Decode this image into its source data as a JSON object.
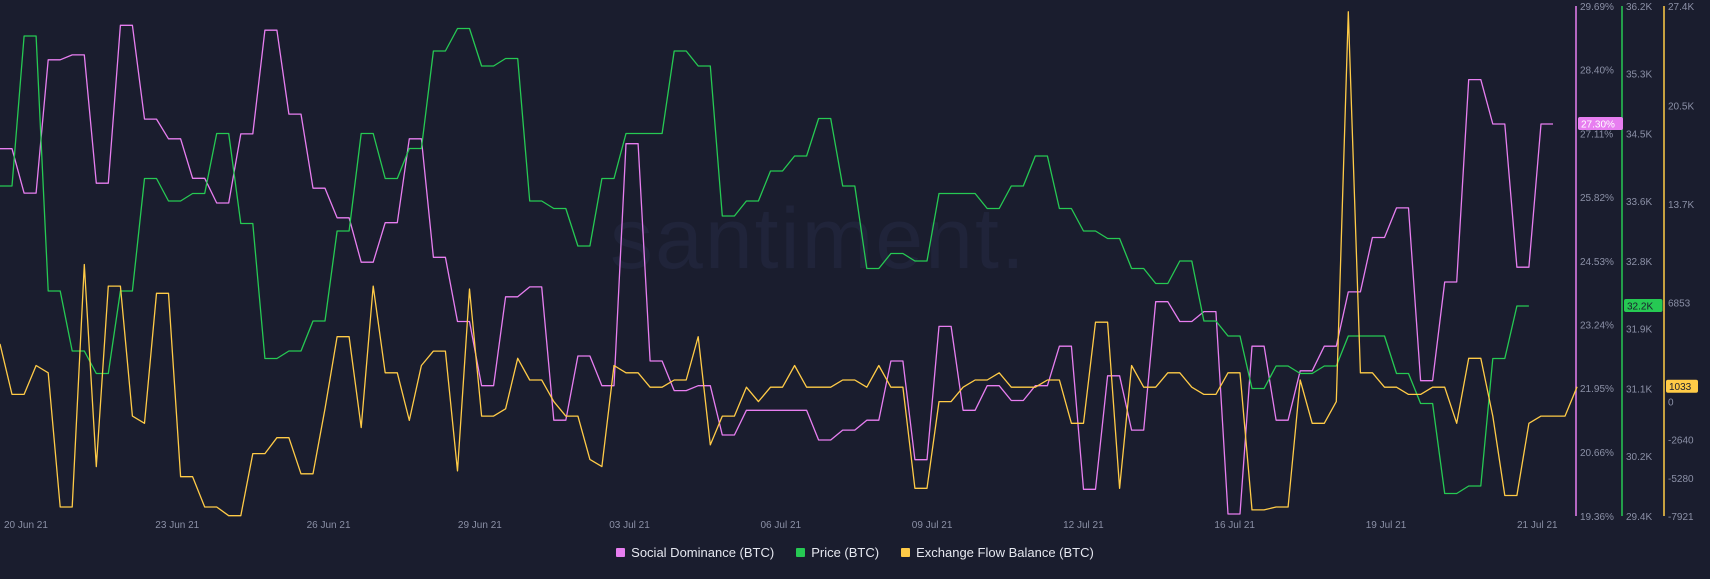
{
  "watermark": "santiment.",
  "legend": [
    {
      "label": "Social Dominance (BTC)",
      "color": "#e77ef0"
    },
    {
      "label": "Price (BTC)",
      "color": "#26c953"
    },
    {
      "label": "Exchange Flow Balance (BTC)",
      "color": "#ffcb47"
    }
  ],
  "chart_data": {
    "type": "line",
    "x_ticks": [
      "20 Jun 21",
      "23 Jun 21",
      "26 Jun 21",
      "29 Jun 21",
      "03 Jul 21",
      "06 Jul 21",
      "09 Jul 21",
      "12 Jul 21",
      "16 Jul 21",
      "19 Jul 21",
      "21 Jul 21"
    ],
    "axes": {
      "social_dominance": {
        "ticks": [
          "29.69%",
          "28.40%",
          "27.11%",
          "25.82%",
          "24.53%",
          "23.24%",
          "21.95%",
          "20.66%",
          "19.36%"
        ],
        "range": [
          19.36,
          29.69
        ],
        "current": "27.30%",
        "color": "#e77ef0"
      },
      "price": {
        "ticks": [
          "36.2K",
          "35.3K",
          "34.5K",
          "33.6K",
          "32.8K",
          "31.9K",
          "31.1K",
          "30.2K",
          "29.4K"
        ],
        "range": [
          29400,
          36200
        ],
        "current": "32.2K",
        "color": "#26c953"
      },
      "exchange_flow": {
        "ticks": [
          "27.4K",
          "20.5K",
          "13.7K",
          "6853",
          "0",
          "-2640",
          "-5280",
          "-7921"
        ],
        "range": [
          -7921,
          27400
        ],
        "current": "1033",
        "color": "#ffcb47"
      }
    },
    "series": [
      {
        "name": "Social Dominance (BTC)",
        "axis": "social_dominance",
        "values": [
          26.8,
          26.8,
          25.9,
          25.9,
          28.6,
          28.6,
          28.7,
          28.7,
          26.1,
          26.1,
          29.3,
          29.3,
          27.4,
          27.4,
          27.0,
          27.0,
          26.2,
          26.2,
          25.7,
          25.7,
          27.1,
          27.1,
          29.2,
          29.2,
          27.5,
          27.5,
          26.0,
          26.0,
          25.4,
          25.4,
          24.5,
          24.5,
          25.3,
          25.3,
          27.0,
          27.0,
          24.6,
          24.6,
          23.3,
          23.3,
          22.0,
          22.0,
          23.8,
          23.8,
          24.0,
          24.0,
          21.3,
          21.3,
          22.6,
          22.6,
          22.0,
          22.0,
          26.9,
          26.9,
          22.5,
          22.5,
          21.9,
          21.9,
          22.0,
          22.0,
          21.0,
          21.0,
          21.5,
          21.5,
          21.5,
          21.5,
          21.5,
          21.5,
          20.9,
          20.9,
          21.1,
          21.1,
          21.3,
          21.3,
          22.5,
          22.5,
          20.5,
          20.5,
          23.2,
          23.2,
          21.5,
          21.5,
          22.0,
          22.0,
          21.7,
          21.7,
          22.0,
          22.0,
          22.8,
          22.8,
          19.9,
          19.9,
          22.2,
          22.2,
          21.1,
          21.1,
          23.7,
          23.7,
          23.3,
          23.3,
          23.5,
          23.5,
          19.4,
          19.4,
          22.8,
          22.8,
          21.3,
          21.3,
          22.3,
          22.3,
          22.8,
          22.8,
          23.9,
          23.9,
          25.0,
          25.0,
          25.6,
          25.6,
          22.1,
          22.1,
          24.1,
          24.1,
          28.2,
          28.2,
          27.3,
          27.3,
          24.4,
          24.4,
          27.3,
          27.3
        ]
      },
      {
        "name": "Price (BTC)",
        "axis": "price",
        "values": [
          33.8,
          33.8,
          35.8,
          35.8,
          32.4,
          32.4,
          31.6,
          31.6,
          31.3,
          31.3,
          32.4,
          32.4,
          33.9,
          33.9,
          33.6,
          33.6,
          33.7,
          33.7,
          34.5,
          34.5,
          33.3,
          33.3,
          31.5,
          31.5,
          31.6,
          31.6,
          32.0,
          32.0,
          33.2,
          33.2,
          34.5,
          34.5,
          33.9,
          33.9,
          34.3,
          34.3,
          35.6,
          35.6,
          35.9,
          35.9,
          35.4,
          35.4,
          35.5,
          35.5,
          33.6,
          33.6,
          33.5,
          33.5,
          33.0,
          33.0,
          33.9,
          33.9,
          34.5,
          34.5,
          34.5,
          34.5,
          35.6,
          35.6,
          35.4,
          35.4,
          33.4,
          33.4,
          33.6,
          33.6,
          34.0,
          34.0,
          34.2,
          34.2,
          34.7,
          34.7,
          33.8,
          33.8,
          32.7,
          32.7,
          32.9,
          32.9,
          32.8,
          32.8,
          33.7,
          33.7,
          33.7,
          33.7,
          33.5,
          33.5,
          33.8,
          33.8,
          34.2,
          34.2,
          33.5,
          33.5,
          33.2,
          33.2,
          33.1,
          33.1,
          32.7,
          32.7,
          32.5,
          32.5,
          32.8,
          32.8,
          32.0,
          32.0,
          31.8,
          31.8,
          31.1,
          31.1,
          31.4,
          31.4,
          31.3,
          31.3,
          31.4,
          31.4,
          31.8,
          31.8,
          31.8,
          31.8,
          31.3,
          31.3,
          30.9,
          30.9,
          29.7,
          29.7,
          29.8,
          29.8,
          31.5,
          31.5,
          32.2,
          32.2
        ]
      },
      {
        "name": "Exchange Flow Balance (BTC)",
        "axis": "exchange_flow",
        "values": [
          4000,
          500,
          500,
          2500,
          2000,
          -7300,
          -7300,
          9500,
          -4500,
          8000,
          8000,
          -1000,
          -1500,
          7500,
          7500,
          -5200,
          -5200,
          -7300,
          -7300,
          -7900,
          -7900,
          -3600,
          -3600,
          -2500,
          -2500,
          -5000,
          -5000,
          -500,
          4500,
          4500,
          -1800,
          8000,
          2000,
          2000,
          -1300,
          2500,
          3500,
          3500,
          -4800,
          7800,
          -1000,
          -1000,
          -500,
          3000,
          1500,
          1500,
          0,
          -1000,
          -1000,
          -4000,
          -4500,
          2500,
          2000,
          2000,
          1000,
          1000,
          1500,
          1500,
          4500,
          -3000,
          -1000,
          -1000,
          1000,
          0,
          1000,
          1000,
          2500,
          1000,
          1000,
          1000,
          1500,
          1500,
          1000,
          2500,
          1000,
          1000,
          -6000,
          -6000,
          0,
          0,
          1000,
          1500,
          1500,
          2000,
          1000,
          1000,
          1000,
          1500,
          1500,
          -1500,
          -1500,
          5500,
          5500,
          -6000,
          2500,
          1000,
          1000,
          2000,
          2000,
          1000,
          500,
          500,
          2000,
          2000,
          -7500,
          -7500,
          -7300,
          -7300,
          1500,
          -1500,
          -1500,
          0,
          27000,
          2000,
          2000,
          1000,
          1000,
          500,
          500,
          1000,
          1000,
          -1500,
          3000,
          3000,
          -1000,
          -6500,
          -6500,
          -1500,
          -1000,
          -1000,
          -1000,
          1033
        ]
      }
    ]
  }
}
